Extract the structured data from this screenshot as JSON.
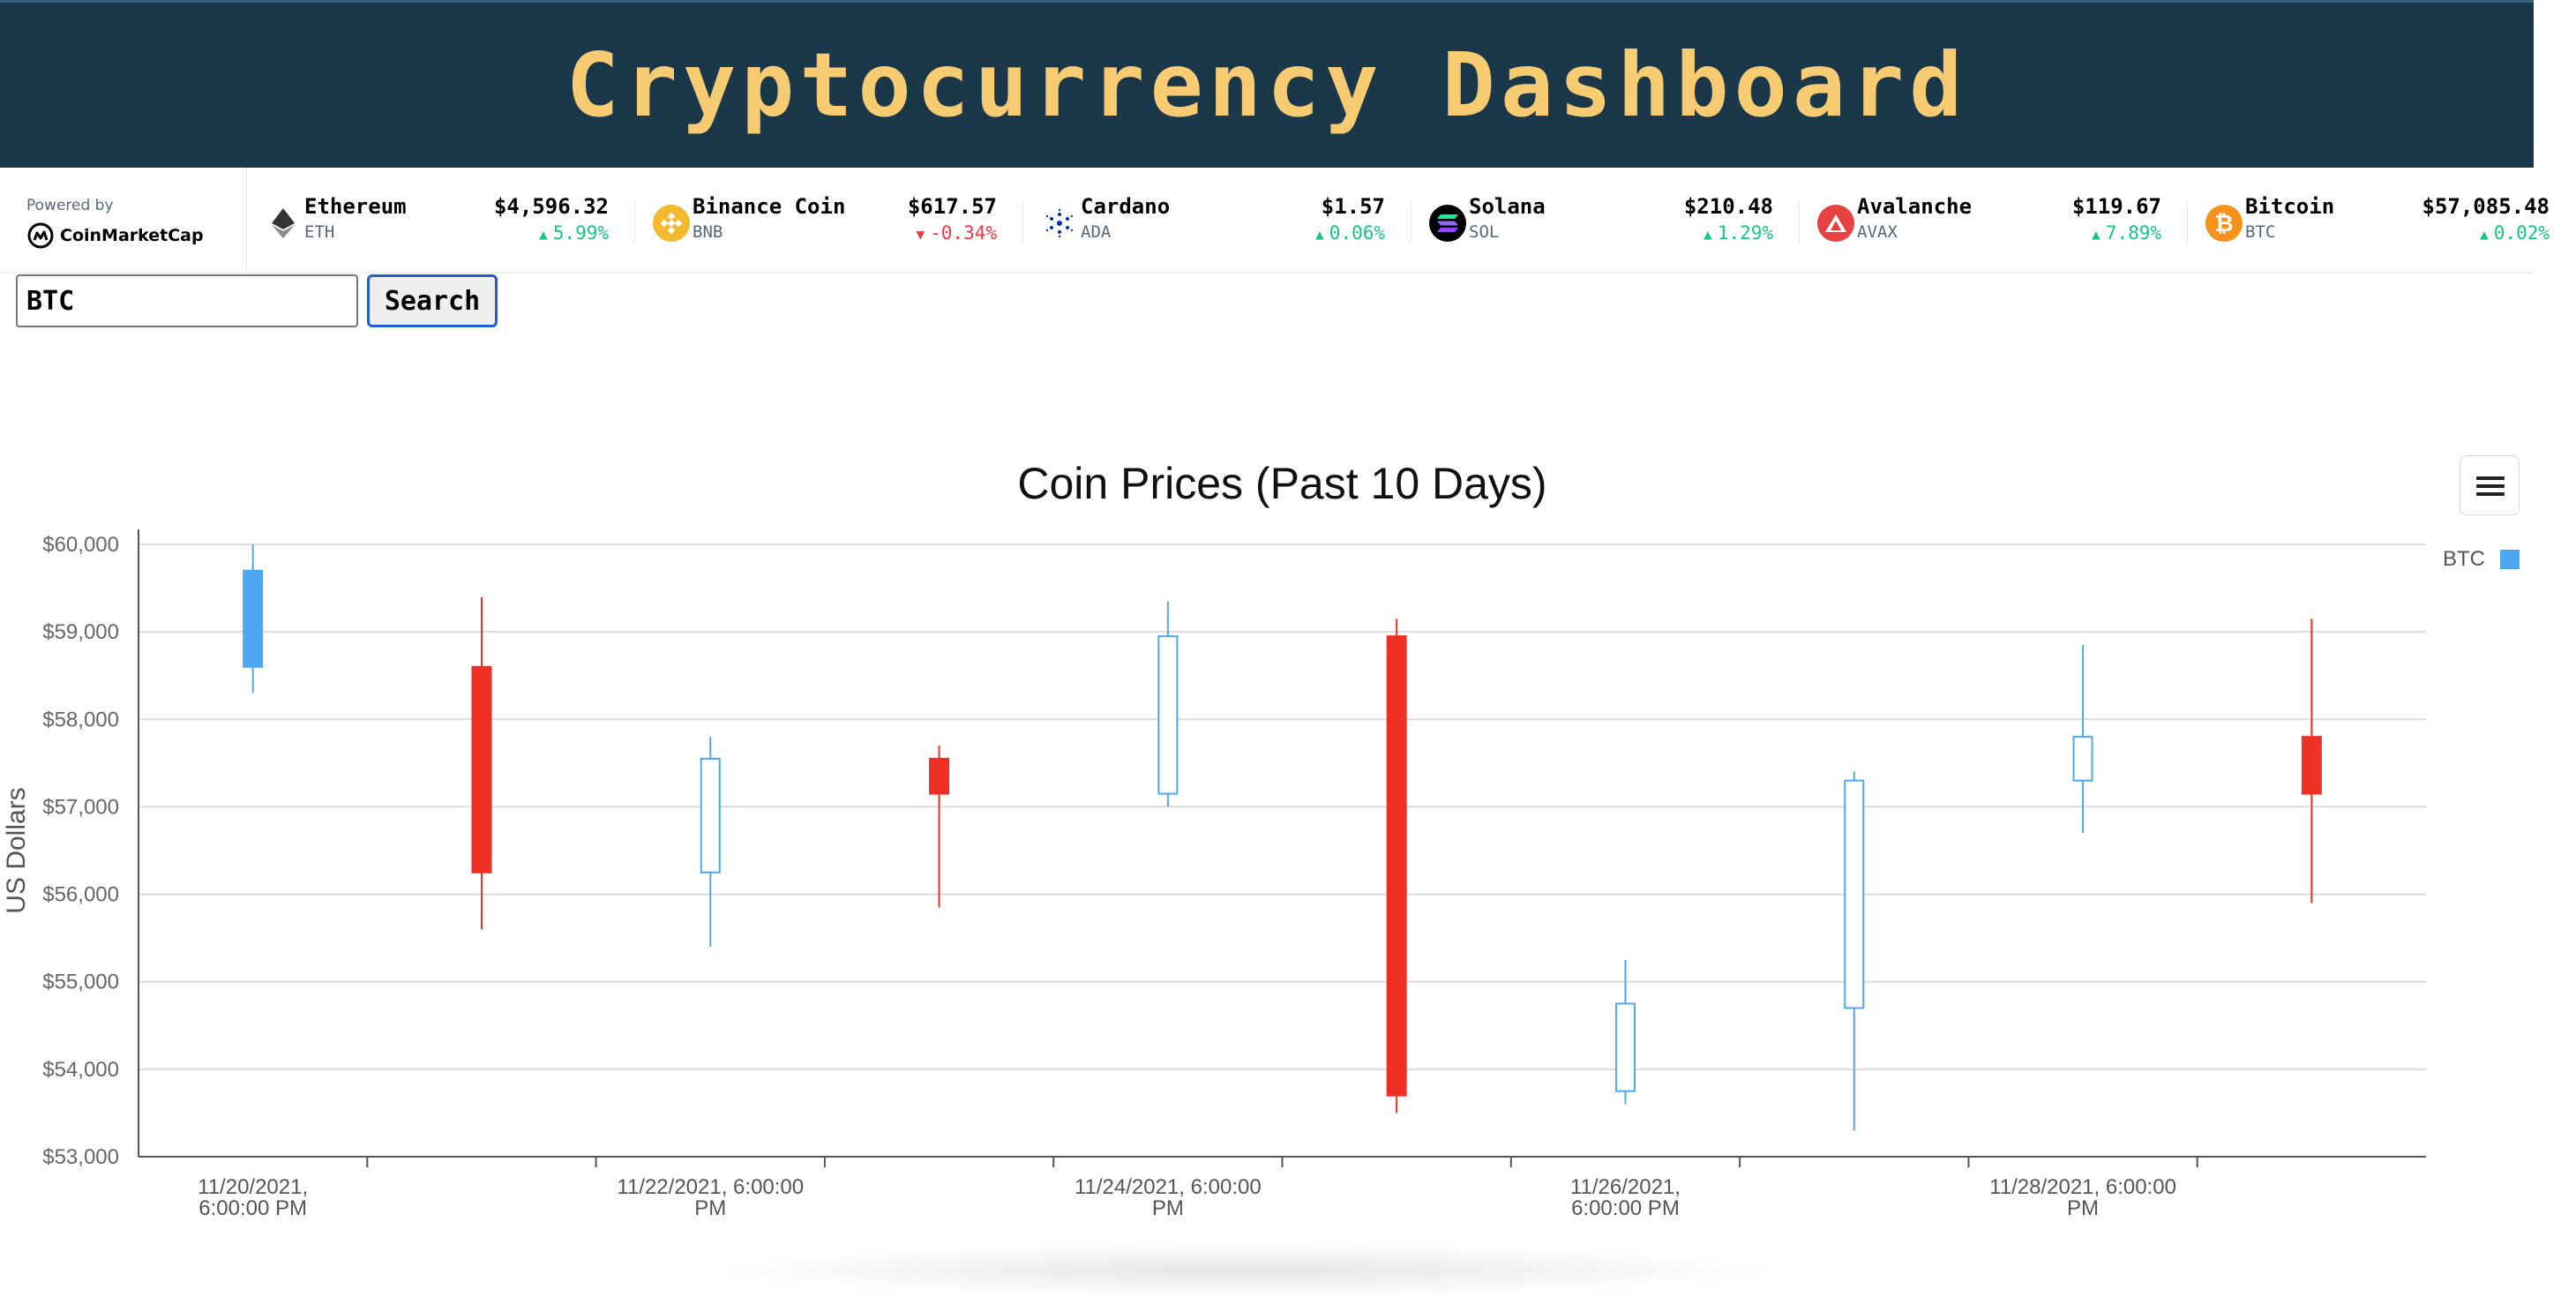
{
  "header": {
    "title": "Cryptocurrency Dashboard"
  },
  "ticker": {
    "powered_by": "Powered by",
    "brand": "CoinMarketCap",
    "coins": [
      {
        "name": "Ethereum",
        "symbol": "ETH",
        "price": "$4,596.32",
        "change": "5.99%",
        "direction": "up",
        "icon": "ethereum-icon",
        "color": "#627eea"
      },
      {
        "name": "Binance Coin",
        "symbol": "BNB",
        "price": "$617.57",
        "change": "-0.34%",
        "direction": "down",
        "icon": "binance-coin-icon",
        "color": "#f3ba2f"
      },
      {
        "name": "Cardano",
        "symbol": "ADA",
        "price": "$1.57",
        "change": "0.06%",
        "direction": "up",
        "icon": "cardano-icon",
        "color": "#0033ad"
      },
      {
        "name": "Solana",
        "symbol": "SOL",
        "price": "$210.48",
        "change": "1.29%",
        "direction": "up",
        "icon": "solana-icon",
        "color": "#000000"
      },
      {
        "name": "Avalanche",
        "symbol": "AVAX",
        "price": "$119.67",
        "change": "7.89%",
        "direction": "up",
        "icon": "avalanche-icon",
        "color": "#e84142"
      },
      {
        "name": "Bitcoin",
        "symbol": "BTC",
        "price": "$57,085.48",
        "change": "0.02%",
        "direction": "up",
        "icon": "bitcoin-icon",
        "color": "#f7931a"
      }
    ]
  },
  "search": {
    "value": "BTC",
    "button_label": "Search"
  },
  "chart_data": {
    "type": "candlestick",
    "title": "Coin Prices (Past 10 Days)",
    "ylabel": "US Dollars",
    "ylim": [
      53000,
      60000
    ],
    "yticks": [
      "$53,000",
      "$54,000",
      "$55,000",
      "$56,000",
      "$57,000",
      "$58,000",
      "$59,000",
      "$60,000"
    ],
    "ytick_values": [
      53000,
      54000,
      55000,
      56000,
      57000,
      58000,
      59000,
      60000
    ],
    "xticks": [
      {
        "label": [
          "11/20/2021,",
          "6:00:00 PM"
        ],
        "index": 0
      },
      {
        "label": [
          "11/22/2021, 6:00:00",
          "PM"
        ],
        "index": 2
      },
      {
        "label": [
          "11/24/2021, 6:00:00",
          "PM"
        ],
        "index": 4
      },
      {
        "label": [
          "11/26/2021,",
          "6:00:00 PM"
        ],
        "index": 6
      },
      {
        "label": [
          "11/28/2021, 6:00:00",
          "PM"
        ],
        "index": 8
      }
    ],
    "series": [
      {
        "name": "BTC",
        "candles": [
          {
            "open": 58600,
            "high": 60000,
            "low": 58300,
            "close": 59700,
            "style": "filled-up"
          },
          {
            "open": 58600,
            "high": 59400,
            "low": 55600,
            "close": 56250,
            "style": "down"
          },
          {
            "open": 56250,
            "high": 57800,
            "low": 55400,
            "close": 57550,
            "style": "hollow-up"
          },
          {
            "open": 57550,
            "high": 57700,
            "low": 55850,
            "close": 57150,
            "style": "down"
          },
          {
            "open": 57150,
            "high": 59350,
            "low": 57000,
            "close": 58950,
            "style": "hollow-up"
          },
          {
            "open": 58950,
            "high": 59150,
            "low": 53500,
            "close": 53700,
            "style": "down"
          },
          {
            "open": 53750,
            "high": 55250,
            "low": 53600,
            "close": 54750,
            "style": "hollow-up"
          },
          {
            "open": 54700,
            "high": 57400,
            "low": 53300,
            "close": 57300,
            "style": "hollow-up"
          },
          {
            "open": 57300,
            "high": 58850,
            "low": 56700,
            "close": 57800,
            "style": "hollow-up"
          },
          {
            "open": 57800,
            "high": 59150,
            "low": 55900,
            "close": 57150,
            "style": "down"
          }
        ]
      }
    ],
    "legend": {
      "label": "BTC",
      "position": "top-right",
      "color": "#4fa8ef"
    },
    "colors": {
      "up": "#4fa8ef",
      "down": "#ee3124",
      "grid": "#dcdcdc",
      "axis": "#555555"
    },
    "grid": true
  },
  "toolbar": {
    "menu_icon": "hamburger-menu-icon"
  }
}
